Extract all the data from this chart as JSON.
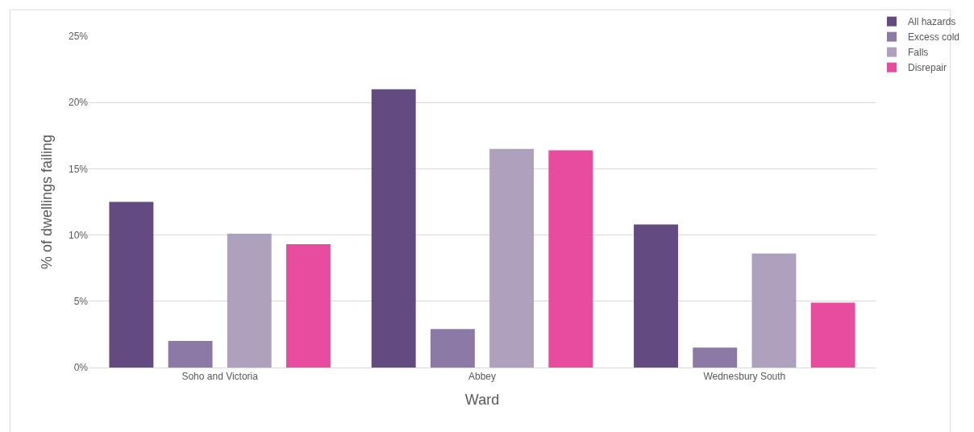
{
  "chart_data": {
    "type": "bar",
    "xlabel": "Ward",
    "ylabel": "% of dwellings failing",
    "categories": [
      "Soho and Victoria",
      "Abbey",
      "Wednesbury South"
    ],
    "series": [
      {
        "name": "All hazards",
        "color": "#5b417a",
        "values": [
          12.5,
          21.0,
          10.8
        ]
      },
      {
        "name": "Excess cold",
        "color": "#8672a0",
        "values": [
          2.0,
          2.9,
          1.5
        ]
      },
      {
        "name": "Falls",
        "color": "#aa9cbb",
        "values": [
          10.1,
          16.5,
          8.6
        ]
      },
      {
        "name": "Disrepair",
        "color": "#e6429a",
        "values": [
          9.3,
          16.4,
          4.9
        ]
      }
    ],
    "ylim": [
      0,
      25
    ],
    "yticks": [
      {
        "value": 0,
        "label": "0%"
      },
      {
        "value": 5,
        "label": "5%"
      },
      {
        "value": 10,
        "label": "10%"
      },
      {
        "value": 15,
        "label": "15%"
      },
      {
        "value": 20,
        "label": "20%"
      },
      {
        "value": 25,
        "label": "25%"
      }
    ],
    "grid": "y",
    "legend": "top right"
  }
}
